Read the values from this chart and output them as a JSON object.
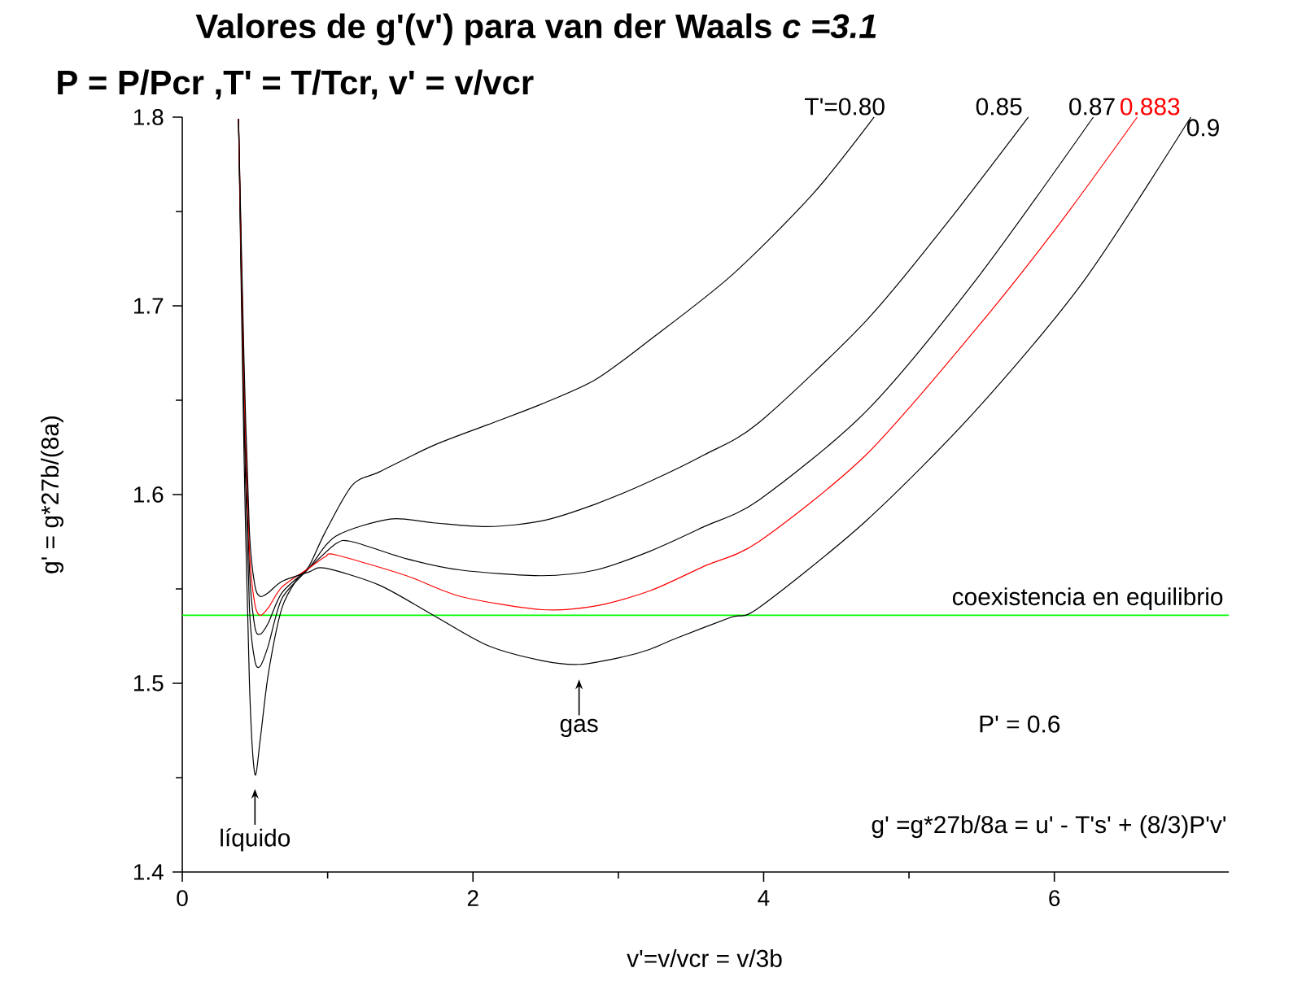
{
  "chart_data": {
    "type": "line",
    "title": "Valores de g'(v') para van der Waals *c =3.1*",
    "subtitle": "P = P/Pcr ,T' = T/Tcr, v' = v/vcr",
    "xlabel": "v'=v/vcr = v/3b",
    "ylabel": "g' = g*27b/(8a)",
    "xlim": [
      0,
      7.2
    ],
    "ylim": [
      1.4,
      1.8
    ],
    "xticks": [
      0,
      2,
      4,
      6
    ],
    "yticks": [
      1.4,
      1.5,
      1.6,
      1.7,
      1.8
    ],
    "series": [
      {
        "name": "T'=0.80",
        "color": "#000000",
        "x": [
          0.387,
          0.425,
          0.462,
          0.499,
          0.536,
          0.592,
          0.686,
          0.797,
          0.872,
          0.983,
          1.17,
          1.356,
          1.728,
          2.101,
          2.473,
          2.845,
          3.218,
          3.777,
          4.335,
          4.76
        ],
        "values": [
          1.799,
          1.62,
          1.5,
          1.452,
          1.47,
          1.505,
          1.54,
          1.556,
          1.562,
          1.58,
          1.605,
          1.612,
          1.626,
          1.637,
          1.648,
          1.661,
          1.682,
          1.716,
          1.759,
          1.8
        ]
      },
      {
        "name": "0.85",
        "color": "#000000",
        "x": [
          0.387,
          0.425,
          0.462,
          0.499,
          0.536,
          0.592,
          0.686,
          0.872,
          1.058,
          1.43,
          1.728,
          2.101,
          2.473,
          2.845,
          3.218,
          3.59,
          3.966,
          4.704,
          5.263,
          5.821
        ],
        "values": [
          1.799,
          1.64,
          1.54,
          1.512,
          1.509,
          1.52,
          1.545,
          1.561,
          1.578,
          1.587,
          1.585,
          1.583,
          1.586,
          1.595,
          1.607,
          1.621,
          1.638,
          1.692,
          1.744,
          1.8
        ]
      },
      {
        "name": "0.87",
        "color": "#000000",
        "x": [
          0.387,
          0.425,
          0.462,
          0.499,
          0.536,
          0.592,
          0.686,
          0.872,
          1.058,
          1.17,
          1.542,
          1.914,
          2.473,
          2.845,
          3.218,
          3.59,
          3.966,
          4.704,
          5.453,
          6.268
        ],
        "values": [
          1.799,
          1.65,
          1.56,
          1.53,
          1.526,
          1.532,
          1.548,
          1.561,
          1.574,
          1.575,
          1.566,
          1.56,
          1.557,
          1.56,
          1.57,
          1.583,
          1.597,
          1.644,
          1.713,
          1.8
        ]
      },
      {
        "name": "0.883",
        "color": "#ff0000",
        "x": [
          0.387,
          0.425,
          0.462,
          0.499,
          0.536,
          0.592,
          0.686,
          0.872,
          0.983,
          1.058,
          1.542,
          1.914,
          2.473,
          2.845,
          3.218,
          3.59,
          3.966,
          4.704,
          5.453,
          6.011,
          6.57
        ],
        "values": [
          1.799,
          1.66,
          1.57,
          1.542,
          1.536,
          1.54,
          1.551,
          1.561,
          1.567,
          1.568,
          1.557,
          1.546,
          1.539,
          1.541,
          1.549,
          1.562,
          1.575,
          1.621,
          1.687,
          1.741,
          1.8
        ]
      },
      {
        "name": "0.9",
        "color": "#000000",
        "x": [
          0.387,
          0.425,
          0.462,
          0.499,
          0.536,
          0.592,
          0.686,
          0.872,
          0.983,
          1.356,
          1.728,
          2.101,
          2.473,
          2.734,
          3.032,
          3.218,
          3.404,
          3.776,
          3.966,
          4.704,
          5.453,
          6.201,
          6.939
        ],
        "values": [
          1.799,
          1.67,
          1.58,
          1.552,
          1.546,
          1.548,
          1.554,
          1.559,
          1.561,
          1.552,
          1.536,
          1.52,
          1.512,
          1.51,
          1.514,
          1.518,
          1.524,
          1.535,
          1.54,
          1.586,
          1.644,
          1.713,
          1.8
        ]
      }
    ],
    "ref_lines": [
      {
        "axis": "y",
        "value": 1.536,
        "label": "coexistencia en equilibrio",
        "color": "#00ff00"
      }
    ],
    "annotations": [
      {
        "text": "líquido",
        "x": 0.5,
        "y": 1.452
      },
      {
        "text": "gas",
        "x": 2.73,
        "y": 1.51
      },
      "P' = 0.6",
      "g' =g*27b/8a = u' - T's' + (8/3)P'v'"
    ]
  }
}
